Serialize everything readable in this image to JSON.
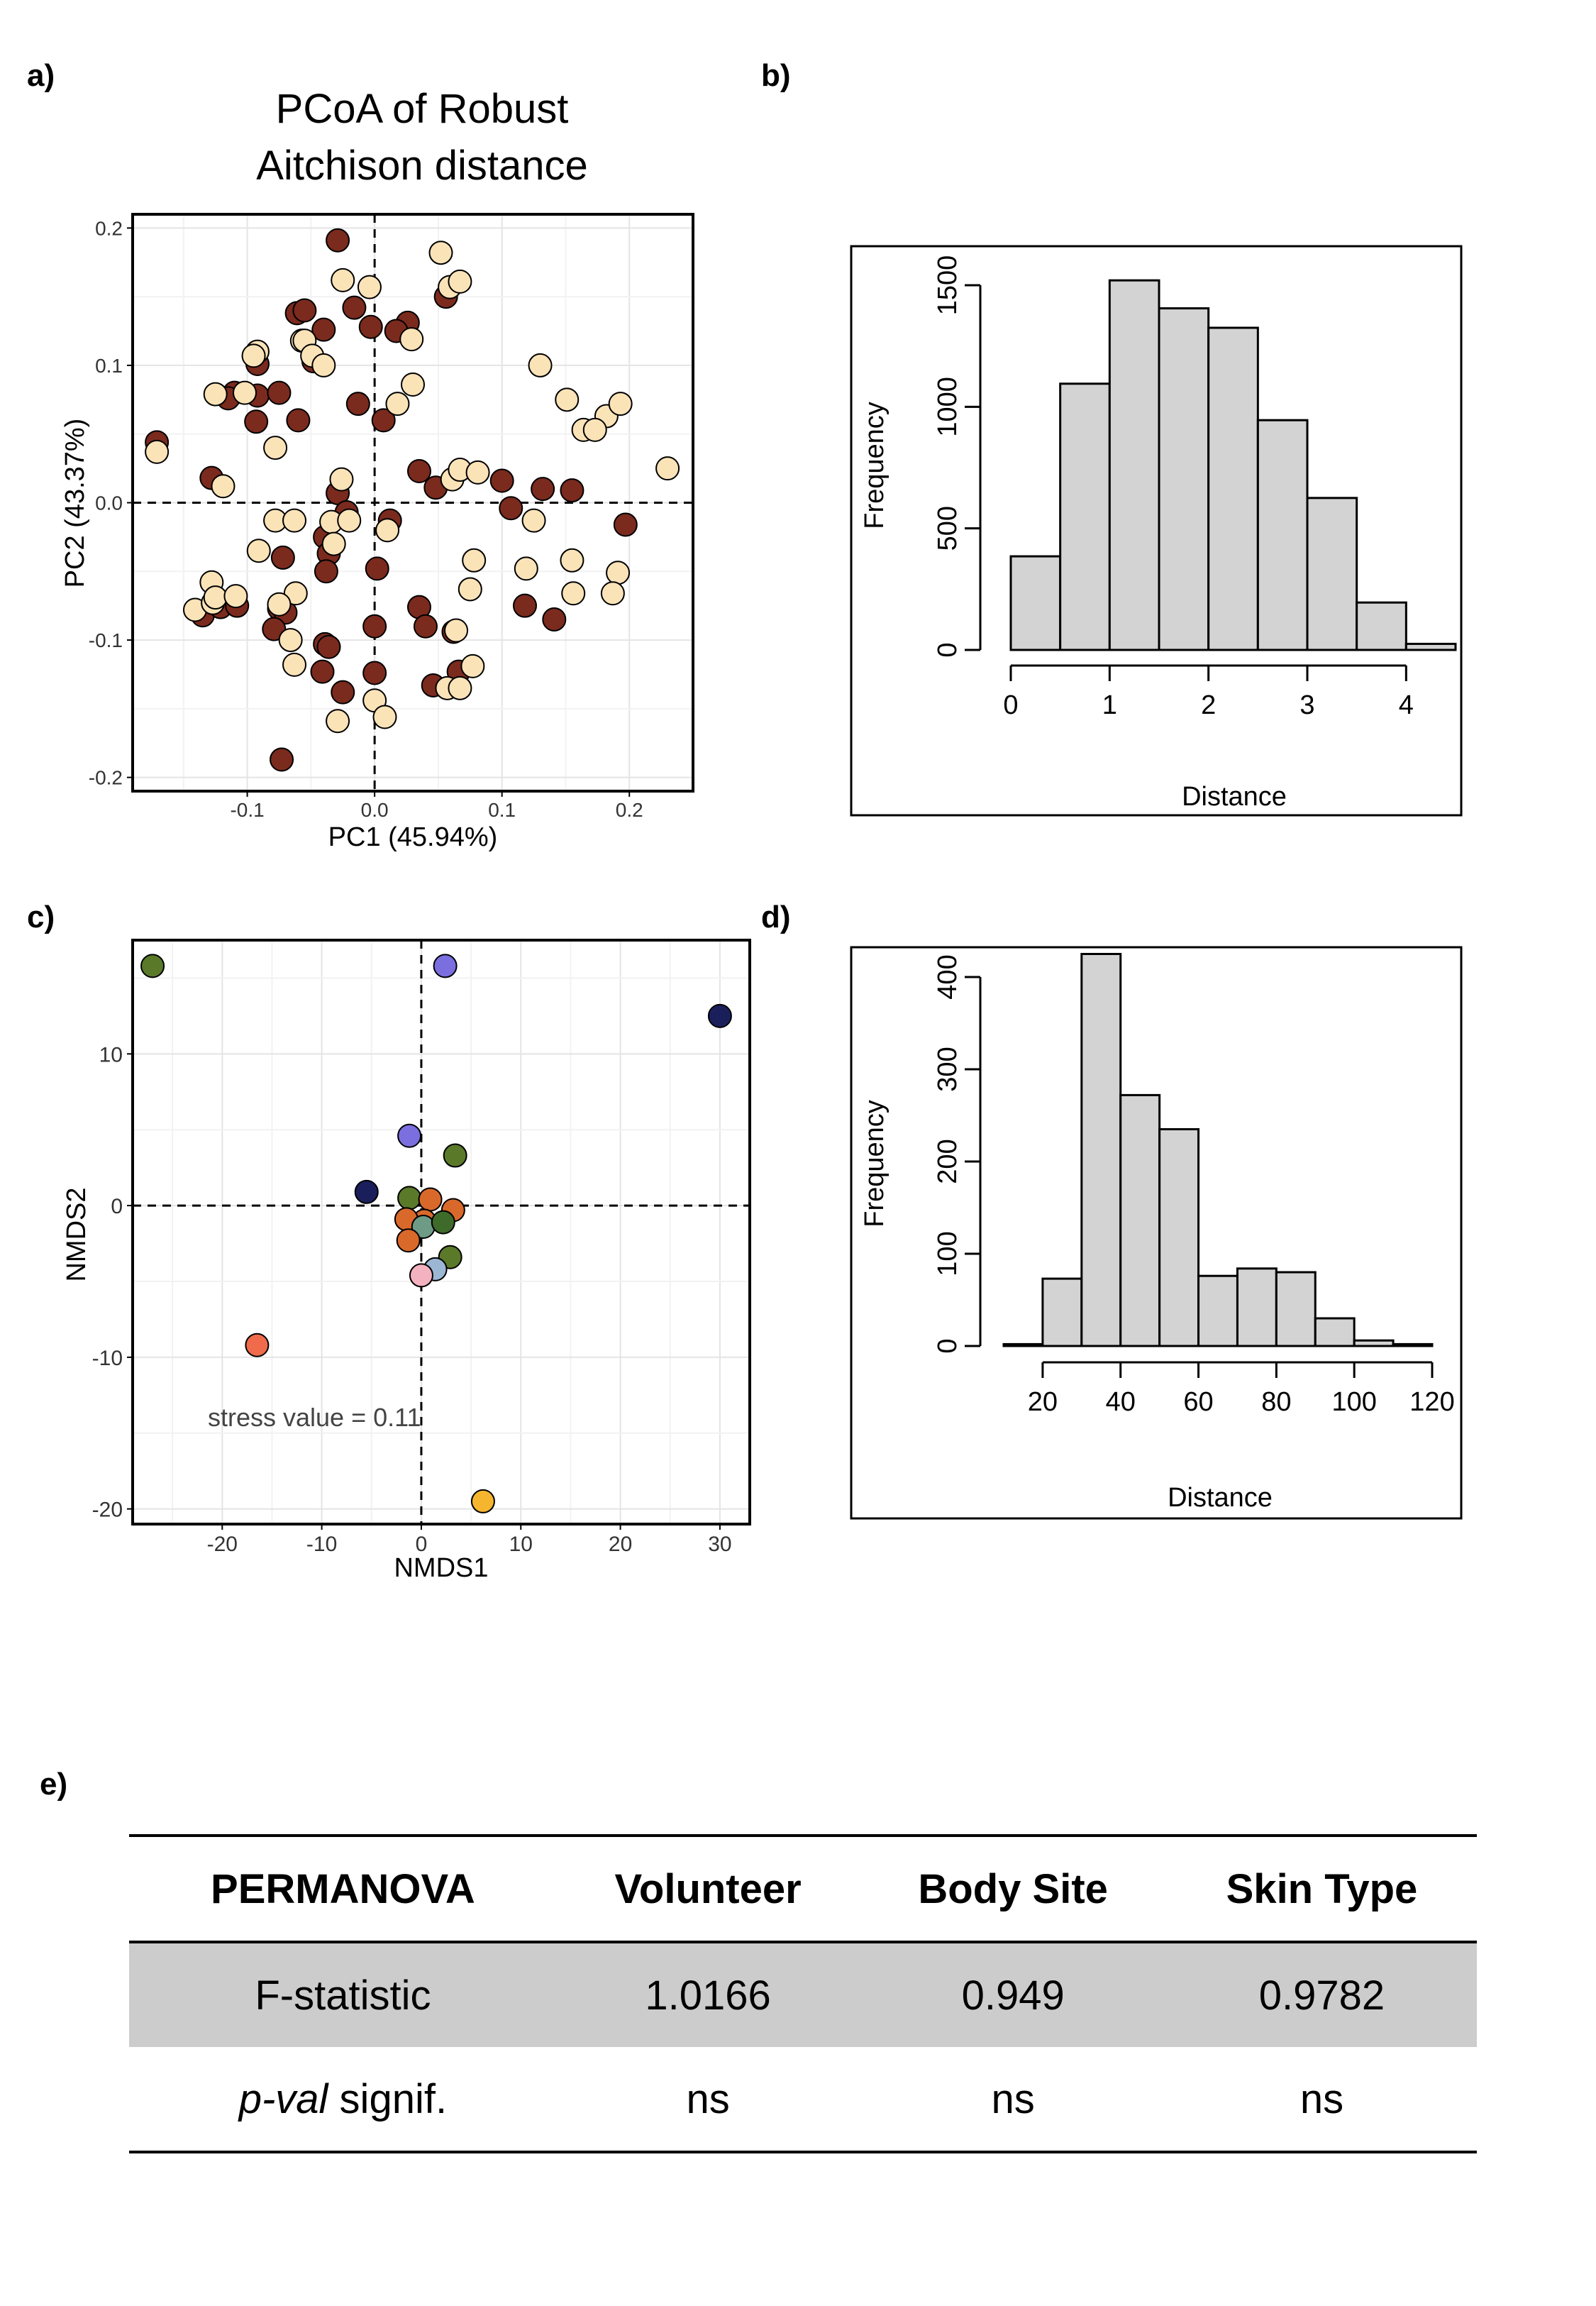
{
  "labels": {
    "a": "a)",
    "b": "b)",
    "c": "c)",
    "d": "d)",
    "e": "e)"
  },
  "panel_a": {
    "title_line1": "PCoA of Robust",
    "title_line2": "Aitchison distance",
    "xlabel": "PC1 (45.94%)",
    "ylabel": "PC2 (43.37%)"
  },
  "panel_b": {
    "xlabel": "Distance",
    "ylabel": "Frequency"
  },
  "panel_c": {
    "xlabel": "NMDS1",
    "ylabel": "NMDS2",
    "annotation": "stress value = 0.11"
  },
  "panel_d": {
    "xlabel": "Distance",
    "ylabel": "Frequency"
  },
  "colors": {
    "dark_series": "#7b2a1e",
    "light_series": "#fbe3b8",
    "hist_fill": "#d3d3d3"
  },
  "chart_data": [
    {
      "id": "a",
      "type": "scatter",
      "title": "PCoA of Robust Aitchison distance",
      "xlabel": "PC1 (45.94%)",
      "ylabel": "PC2 (43.37%)",
      "xlim": [
        -0.19,
        0.25
      ],
      "ylim": [
        -0.21,
        0.21
      ],
      "xticks": [
        -0.1,
        0.0,
        0.1,
        0.2
      ],
      "xtick_labels": [
        "-0.1",
        "0.0",
        "0.1",
        "0.2"
      ],
      "yticks": [
        -0.2,
        -0.1,
        0.0,
        0.1,
        0.2
      ],
      "ytick_labels": [
        "-0.2",
        "-0.1",
        "0.0",
        "0.1",
        "0.2"
      ],
      "grid": true,
      "reference_lines": {
        "x": 0,
        "y": 0
      },
      "series": [
        {
          "color": "#7b2a1e",
          "points": [
            [
              -0.029,
              0.191
            ],
            [
              -0.061,
              0.138
            ],
            [
              -0.055,
              0.14
            ],
            [
              -0.016,
              0.142
            ],
            [
              0.026,
              0.131
            ],
            [
              0.056,
              0.15
            ],
            [
              -0.04,
              0.126
            ],
            [
              -0.003,
              0.128
            ],
            [
              0.017,
              0.125
            ],
            [
              -0.092,
              0.101
            ],
            [
              -0.048,
              0.103
            ],
            [
              -0.11,
              0.08
            ],
            [
              -0.115,
              0.076
            ],
            [
              -0.092,
              0.078
            ],
            [
              -0.075,
              0.08
            ],
            [
              -0.013,
              0.072
            ],
            [
              -0.093,
              0.059
            ],
            [
              -0.06,
              0.06
            ],
            [
              0.007,
              0.06
            ],
            [
              -0.171,
              0.044
            ],
            [
              -0.128,
              0.018
            ],
            [
              0.035,
              0.023
            ],
            [
              0.048,
              0.011
            ],
            [
              0.1,
              0.016
            ],
            [
              0.132,
              0.01
            ],
            [
              0.155,
              0.009
            ],
            [
              0.107,
              -0.004
            ],
            [
              -0.029,
              0.007
            ],
            [
              0.197,
              -0.016
            ],
            [
              -0.022,
              -0.007
            ],
            [
              0.012,
              -0.013
            ],
            [
              -0.039,
              -0.025
            ],
            [
              -0.036,
              -0.037
            ],
            [
              -0.072,
              -0.04
            ],
            [
              -0.038,
              -0.05
            ],
            [
              0.002,
              -0.048
            ],
            [
              -0.135,
              -0.082
            ],
            [
              -0.121,
              -0.076
            ],
            [
              -0.108,
              -0.075
            ],
            [
              -0.075,
              -0.077
            ],
            [
              -0.07,
              -0.08
            ],
            [
              -0.079,
              -0.092
            ],
            [
              0.035,
              -0.076
            ],
            [
              0.04,
              -0.09
            ],
            [
              0.118,
              -0.075
            ],
            [
              0.141,
              -0.085
            ],
            [
              0.062,
              -0.094
            ],
            [
              -0.039,
              -0.103
            ],
            [
              -0.036,
              -0.105
            ],
            [
              -0.041,
              -0.123
            ],
            [
              0.0,
              -0.09
            ],
            [
              0.0,
              -0.124
            ],
            [
              0.066,
              -0.123
            ],
            [
              0.046,
              -0.133
            ],
            [
              -0.025,
              -0.138
            ],
            [
              -0.073,
              -0.187
            ]
          ]
        },
        {
          "color": "#fbe3b8",
          "points": [
            [
              0.052,
              0.182
            ],
            [
              -0.025,
              0.162
            ],
            [
              -0.004,
              0.157
            ],
            [
              0.059,
              0.157
            ],
            [
              0.067,
              0.161
            ],
            [
              -0.057,
              0.118
            ],
            [
              0.029,
              0.119
            ],
            [
              -0.055,
              0.118
            ],
            [
              -0.049,
              0.107
            ],
            [
              -0.092,
              0.11
            ],
            [
              -0.095,
              0.107
            ],
            [
              -0.04,
              0.1
            ],
            [
              0.13,
              0.1
            ],
            [
              0.03,
              0.086
            ],
            [
              -0.125,
              0.079
            ],
            [
              -0.102,
              0.08
            ],
            [
              0.018,
              0.072
            ],
            [
              0.151,
              0.075
            ],
            [
              0.182,
              0.063
            ],
            [
              0.193,
              0.072
            ],
            [
              0.164,
              0.053
            ],
            [
              0.173,
              0.053
            ],
            [
              -0.078,
              0.04
            ],
            [
              -0.171,
              0.037
            ],
            [
              -0.119,
              0.012
            ],
            [
              -0.026,
              0.017
            ],
            [
              0.061,
              0.017
            ],
            [
              0.067,
              0.024
            ],
            [
              0.081,
              0.022
            ],
            [
              0.23,
              0.025
            ],
            [
              -0.078,
              -0.013
            ],
            [
              -0.063,
              -0.013
            ],
            [
              -0.034,
              -0.014
            ],
            [
              -0.02,
              -0.013
            ],
            [
              0.01,
              -0.02
            ],
            [
              0.125,
              -0.013
            ],
            [
              0.078,
              -0.042
            ],
            [
              0.155,
              -0.042
            ],
            [
              -0.091,
              -0.035
            ],
            [
              -0.032,
              -0.03
            ],
            [
              0.119,
              -0.048
            ],
            [
              0.191,
              -0.051
            ],
            [
              -0.128,
              -0.058
            ],
            [
              -0.062,
              -0.066
            ],
            [
              0.075,
              -0.063
            ],
            [
              0.156,
              -0.066
            ],
            [
              0.187,
              -0.066
            ],
            [
              -0.141,
              -0.078
            ],
            [
              -0.127,
              -0.073
            ],
            [
              -0.125,
              -0.069
            ],
            [
              -0.109,
              -0.068
            ],
            [
              -0.075,
              -0.074
            ],
            [
              -0.066,
              -0.1
            ],
            [
              0.064,
              -0.093
            ],
            [
              0.077,
              -0.119
            ],
            [
              0.057,
              -0.135
            ],
            [
              0.067,
              -0.135
            ],
            [
              0.0,
              -0.144
            ],
            [
              -0.029,
              -0.159
            ],
            [
              0.008,
              -0.156
            ],
            [
              -0.063,
              -0.118
            ]
          ]
        }
      ]
    },
    {
      "id": "b",
      "type": "bar",
      "xlabel": "Distance",
      "ylabel": "Frequency",
      "bin_edges": [
        0,
        0.5,
        1,
        1.5,
        2,
        2.5,
        3,
        3.5,
        4,
        4.5
      ],
      "values": [
        385,
        1095,
        1520,
        1405,
        1325,
        945,
        625,
        195,
        25
      ],
      "xlim": [
        0,
        4.5
      ],
      "ylim": [
        0,
        1500
      ],
      "xticks": [
        0,
        1,
        2,
        3,
        4
      ],
      "yticks": [
        0,
        500,
        1000,
        1500
      ],
      "xtick_labels": [
        "0",
        "1",
        "2",
        "3",
        "4"
      ],
      "ytick_labels": [
        "0",
        "500",
        "1000",
        "1500"
      ]
    },
    {
      "id": "c",
      "type": "scatter",
      "xlabel": "NMDS1",
      "ylabel": "NMDS2",
      "annotation": "stress value = 0.11",
      "xlim": [
        -29,
        33
      ],
      "ylim": [
        -21,
        17.5
      ],
      "xticks": [
        -20,
        -10,
        0,
        10,
        20,
        30
      ],
      "xtick_labels": [
        "-20",
        "-10",
        "0",
        "10",
        "20",
        "30"
      ],
      "yticks": [
        -20,
        -10,
        0,
        10
      ],
      "ytick_labels": [
        "-20",
        "-10",
        "0",
        "10"
      ],
      "grid": true,
      "reference_lines": {
        "x": 0,
        "y": 0
      },
      "points": [
        {
          "x": -27,
          "y": 15.8,
          "color": "#5a7a2a"
        },
        {
          "x": 2.4,
          "y": 15.8,
          "color": "#7b6fe0"
        },
        {
          "x": 30,
          "y": 12.5,
          "color": "#1a1f5c"
        },
        {
          "x": -1.2,
          "y": 4.6,
          "color": "#7b6fe0"
        },
        {
          "x": 3.4,
          "y": 3.3,
          "color": "#5a7a2a"
        },
        {
          "x": -5.5,
          "y": 0.9,
          "color": "#1a1f5c"
        },
        {
          "x": -1.2,
          "y": 0.5,
          "color": "#5a7a2a"
        },
        {
          "x": 0.9,
          "y": 0.4,
          "color": "#d9692b"
        },
        {
          "x": 3.2,
          "y": -0.3,
          "color": "#d9692b"
        },
        {
          "x": 0.3,
          "y": -1.0,
          "color": "#d9692b"
        },
        {
          "x": -1.5,
          "y": -0.9,
          "color": "#d9692b"
        },
        {
          "x": 0.2,
          "y": -1.4,
          "color": "#6e9b86"
        },
        {
          "x": 2.2,
          "y": -1.1,
          "color": "#3e6b2a"
        },
        {
          "x": -1.3,
          "y": -2.3,
          "color": "#d9692b"
        },
        {
          "x": 2.9,
          "y": -3.4,
          "color": "#5a7a2a"
        },
        {
          "x": 1.4,
          "y": -4.2,
          "color": "#9bb7d4"
        },
        {
          "x": 0.0,
          "y": -4.6,
          "color": "#f4b2c0"
        },
        {
          "x": -16.5,
          "y": -9.2,
          "color": "#ef6b4b"
        },
        {
          "x": 6.2,
          "y": -19.5,
          "color": "#f6b52e"
        }
      ]
    },
    {
      "id": "d",
      "type": "bar",
      "xlabel": "Distance",
      "ylabel": "Frequency",
      "bin_edges": [
        10,
        20,
        30,
        40,
        50,
        60,
        70,
        80,
        90,
        100,
        110,
        120
      ],
      "values": [
        2,
        73,
        425,
        272,
        235,
        76,
        84,
        80,
        30,
        6,
        2
      ],
      "xlim": [
        10,
        120
      ],
      "ylim": [
        0,
        400
      ],
      "xticks": [
        20,
        40,
        60,
        80,
        100,
        120
      ],
      "yticks": [
        0,
        100,
        200,
        300,
        400
      ],
      "xtick_labels": [
        "20",
        "40",
        "60",
        "80",
        "100",
        "120"
      ],
      "ytick_labels": [
        "0",
        "100",
        "200",
        "300",
        "400"
      ]
    }
  ],
  "table": {
    "headers": [
      "PERMANOVA",
      "Volunteer",
      "Body Site",
      "Skin Type"
    ],
    "row1": {
      "label": "F-statistic",
      "values": [
        "1.0166",
        "0.949",
        "0.9782"
      ]
    },
    "row2": {
      "label_italic": "p-val",
      "label_rest": " signif.",
      "values": [
        "ns",
        "ns",
        "ns"
      ]
    }
  }
}
